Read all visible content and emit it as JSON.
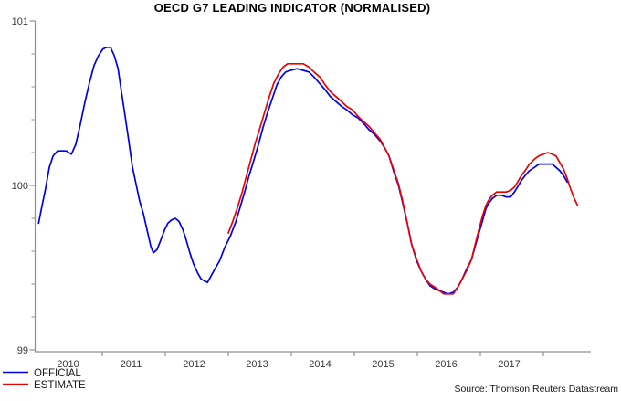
{
  "chart_data": {
    "type": "line",
    "title": "OECD G7 LEADING INDICATOR (NORMALISED)",
    "xlabel": "",
    "ylabel": "",
    "x_range": [
      2010,
      2018.75
    ],
    "y_range": [
      99,
      101
    ],
    "y_major_ticks": [
      99,
      100,
      101
    ],
    "y_minor_tick_step": 0.2,
    "x_boundary_tick_years": [
      2011,
      2012,
      2013,
      2014,
      2015,
      2016,
      2017,
      2018
    ],
    "x_tick_labels": [
      "2010",
      "2011",
      "2012",
      "2013",
      "2014",
      "2015",
      "2016",
      "2017"
    ],
    "grid": false,
    "legend_position": "bottom-left",
    "axis_color": "#8f8f8f",
    "source": "Source: Thomson Reuters Datastream",
    "series": [
      {
        "name": "OFFICIAL",
        "color": "#0000ee",
        "points": [
          [
            2009.99,
            99.77
          ],
          [
            2010.04,
            99.87
          ],
          [
            2010.1,
            99.98
          ],
          [
            2010.16,
            100.11
          ],
          [
            2010.22,
            100.18
          ],
          [
            2010.29,
            100.21
          ],
          [
            2010.36,
            100.21
          ],
          [
            2010.43,
            100.21
          ],
          [
            2010.51,
            100.19
          ],
          [
            2010.58,
            100.25
          ],
          [
            2010.65,
            100.37
          ],
          [
            2010.72,
            100.5
          ],
          [
            2010.8,
            100.63
          ],
          [
            2010.87,
            100.73
          ],
          [
            2010.94,
            100.79
          ],
          [
            2011.01,
            100.83
          ],
          [
            2011.07,
            100.84
          ],
          [
            2011.13,
            100.84
          ],
          [
            2011.19,
            100.79
          ],
          [
            2011.25,
            100.71
          ],
          [
            2011.3,
            100.58
          ],
          [
            2011.36,
            100.43
          ],
          [
            2011.42,
            100.27
          ],
          [
            2011.48,
            100.11
          ],
          [
            2011.54,
            100.0
          ],
          [
            2011.59,
            99.91
          ],
          [
            2011.65,
            99.83
          ],
          [
            2011.71,
            99.73
          ],
          [
            2011.77,
            99.63
          ],
          [
            2011.81,
            99.59
          ],
          [
            2011.87,
            99.61
          ],
          [
            2011.93,
            99.67
          ],
          [
            2011.99,
            99.73
          ],
          [
            2012.04,
            99.77
          ],
          [
            2012.1,
            99.79
          ],
          [
            2012.16,
            99.8
          ],
          [
            2012.22,
            99.78
          ],
          [
            2012.28,
            99.73
          ],
          [
            2012.33,
            99.67
          ],
          [
            2012.39,
            99.59
          ],
          [
            2012.45,
            99.52
          ],
          [
            2012.51,
            99.47
          ],
          [
            2012.57,
            99.43
          ],
          [
            2012.62,
            99.42
          ],
          [
            2012.67,
            99.41
          ],
          [
            2012.77,
            99.48
          ],
          [
            2012.86,
            99.54
          ],
          [
            2012.94,
            99.62
          ],
          [
            2013.03,
            99.69
          ],
          [
            2013.12,
            99.78
          ],
          [
            2013.19,
            99.87
          ],
          [
            2013.26,
            99.96
          ],
          [
            2013.33,
            100.06
          ],
          [
            2013.41,
            100.16
          ],
          [
            2013.48,
            100.25
          ],
          [
            2013.55,
            100.35
          ],
          [
            2013.62,
            100.44
          ],
          [
            2013.7,
            100.53
          ],
          [
            2013.77,
            100.61
          ],
          [
            2013.84,
            100.66
          ],
          [
            2013.91,
            100.69
          ],
          [
            2013.99,
            100.7
          ],
          [
            2014.09,
            100.71
          ],
          [
            2014.19,
            100.7
          ],
          [
            2014.28,
            100.69
          ],
          [
            2014.36,
            100.66
          ],
          [
            2014.45,
            100.62
          ],
          [
            2014.54,
            100.58
          ],
          [
            2014.62,
            100.54
          ],
          [
            2014.71,
            100.51
          ],
          [
            2014.8,
            100.48
          ],
          [
            2014.88,
            100.46
          ],
          [
            2014.97,
            100.43
          ],
          [
            2015.06,
            100.41
          ],
          [
            2015.14,
            100.38
          ],
          [
            2015.23,
            100.34
          ],
          [
            2015.32,
            100.31
          ],
          [
            2015.41,
            100.27
          ],
          [
            2015.48,
            100.23
          ],
          [
            2015.55,
            100.18
          ],
          [
            2015.62,
            100.09
          ],
          [
            2015.7,
            100.0
          ],
          [
            2015.77,
            99.89
          ],
          [
            2015.84,
            99.77
          ],
          [
            2015.91,
            99.64
          ],
          [
            2015.99,
            99.54
          ],
          [
            2016.06,
            99.48
          ],
          [
            2016.13,
            99.43
          ],
          [
            2016.2,
            99.39
          ],
          [
            2016.28,
            99.37
          ],
          [
            2016.35,
            99.36
          ],
          [
            2016.42,
            99.35
          ],
          [
            2016.49,
            99.34
          ],
          [
            2016.57,
            99.35
          ],
          [
            2016.64,
            99.38
          ],
          [
            2016.71,
            99.43
          ],
          [
            2016.78,
            99.49
          ],
          [
            2016.86,
            99.55
          ],
          [
            2016.91,
            99.62
          ],
          [
            2016.97,
            99.7
          ],
          [
            2017.03,
            99.78
          ],
          [
            2017.09,
            99.86
          ],
          [
            2017.13,
            99.89
          ],
          [
            2017.19,
            99.92
          ],
          [
            2017.26,
            99.94
          ],
          [
            2017.33,
            99.94
          ],
          [
            2017.41,
            99.93
          ],
          [
            2017.48,
            99.93
          ],
          [
            2017.54,
            99.96
          ],
          [
            2017.59,
            99.99
          ],
          [
            2017.65,
            100.03
          ],
          [
            2017.71,
            100.06
          ],
          [
            2017.78,
            100.09
          ],
          [
            2017.86,
            100.11
          ],
          [
            2017.93,
            100.13
          ],
          [
            2018.0,
            100.13
          ],
          [
            2018.07,
            100.13
          ],
          [
            2018.14,
            100.13
          ],
          [
            2018.2,
            100.11
          ],
          [
            2018.26,
            100.09
          ],
          [
            2018.32,
            100.06
          ],
          [
            2018.38,
            100.02
          ]
        ]
      },
      {
        "name": "ESTIMATE",
        "color": "#ee0000",
        "points": [
          [
            2013.0,
            99.71
          ],
          [
            2013.07,
            99.78
          ],
          [
            2013.14,
            99.86
          ],
          [
            2013.22,
            99.96
          ],
          [
            2013.29,
            100.06
          ],
          [
            2013.36,
            100.16
          ],
          [
            2013.43,
            100.26
          ],
          [
            2013.51,
            100.36
          ],
          [
            2013.58,
            100.45
          ],
          [
            2013.65,
            100.54
          ],
          [
            2013.72,
            100.62
          ],
          [
            2013.8,
            100.68
          ],
          [
            2013.87,
            100.72
          ],
          [
            2013.94,
            100.74
          ],
          [
            2014.01,
            100.74
          ],
          [
            2014.1,
            100.74
          ],
          [
            2014.19,
            100.74
          ],
          [
            2014.28,
            100.72
          ],
          [
            2014.36,
            100.69
          ],
          [
            2014.45,
            100.66
          ],
          [
            2014.54,
            100.61
          ],
          [
            2014.62,
            100.57
          ],
          [
            2014.71,
            100.54
          ],
          [
            2014.8,
            100.51
          ],
          [
            2014.88,
            100.48
          ],
          [
            2014.97,
            100.46
          ],
          [
            2015.06,
            100.42
          ],
          [
            2015.14,
            100.39
          ],
          [
            2015.23,
            100.36
          ],
          [
            2015.32,
            100.32
          ],
          [
            2015.41,
            100.28
          ],
          [
            2015.48,
            100.23
          ],
          [
            2015.55,
            100.18
          ],
          [
            2015.62,
            100.1
          ],
          [
            2015.7,
            100.01
          ],
          [
            2015.77,
            99.9
          ],
          [
            2015.84,
            99.77
          ],
          [
            2015.91,
            99.64
          ],
          [
            2015.99,
            99.55
          ],
          [
            2016.06,
            99.48
          ],
          [
            2016.13,
            99.43
          ],
          [
            2016.2,
            99.4
          ],
          [
            2016.28,
            99.38
          ],
          [
            2016.35,
            99.36
          ],
          [
            2016.42,
            99.34
          ],
          [
            2016.49,
            99.34
          ],
          [
            2016.57,
            99.34
          ],
          [
            2016.64,
            99.38
          ],
          [
            2016.71,
            99.43
          ],
          [
            2016.78,
            99.48
          ],
          [
            2016.86,
            99.55
          ],
          [
            2016.91,
            99.63
          ],
          [
            2016.97,
            99.72
          ],
          [
            2017.03,
            99.81
          ],
          [
            2017.09,
            99.88
          ],
          [
            2017.13,
            99.91
          ],
          [
            2017.19,
            99.94
          ],
          [
            2017.26,
            99.96
          ],
          [
            2017.33,
            99.96
          ],
          [
            2017.41,
            99.96
          ],
          [
            2017.48,
            99.97
          ],
          [
            2017.54,
            99.99
          ],
          [
            2017.59,
            100.02
          ],
          [
            2017.65,
            100.06
          ],
          [
            2017.71,
            100.09
          ],
          [
            2017.78,
            100.13
          ],
          [
            2017.86,
            100.16
          ],
          [
            2017.93,
            100.18
          ],
          [
            2018.0,
            100.19
          ],
          [
            2018.07,
            100.2
          ],
          [
            2018.14,
            100.19
          ],
          [
            2018.2,
            100.18
          ],
          [
            2018.26,
            100.14
          ],
          [
            2018.32,
            100.1
          ],
          [
            2018.38,
            100.04
          ],
          [
            2018.43,
            99.98
          ],
          [
            2018.49,
            99.92
          ],
          [
            2018.54,
            99.88
          ]
        ]
      }
    ]
  }
}
